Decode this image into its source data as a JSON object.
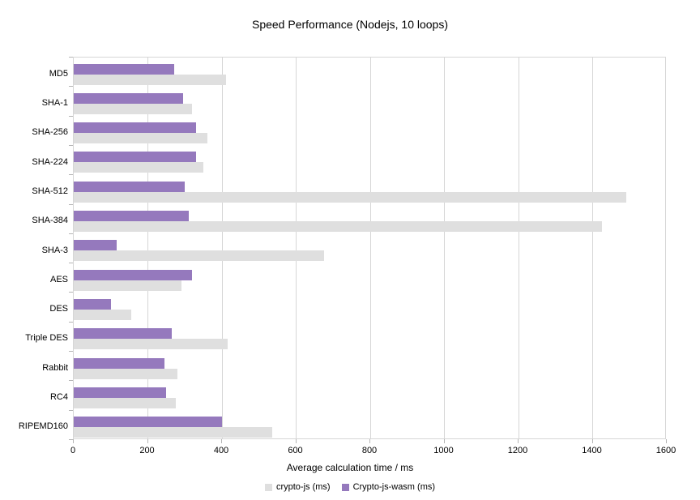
{
  "title": "Speed Performance (Nodejs, 10 loops)",
  "chart_data": {
    "type": "bar",
    "orientation": "horizontal",
    "title": "Speed Performance (Nodejs, 10 loops)",
    "xlabel": "Average calculation time / ms",
    "ylabel": "",
    "xlim": [
      0,
      1600
    ],
    "xticks": [
      0,
      200,
      400,
      600,
      800,
      1000,
      1200,
      1400,
      1600
    ],
    "grid": "vertical",
    "legend_position": "bottom",
    "categories": [
      "MD5",
      "SHA-1",
      "SHA-256",
      "SHA-224",
      "SHA-512",
      "SHA-384",
      "SHA-3",
      "AES",
      "DES",
      "Triple DES",
      "Rabbit",
      "RC4",
      "RIPEMD160"
    ],
    "series": [
      {
        "name": "crypto-js (ms)",
        "color": "#dfdfdf",
        "values": [
          410,
          320,
          360,
          350,
          1490,
          1425,
          675,
          290,
          155,
          415,
          280,
          275,
          535
        ]
      },
      {
        "name": "Crypto-js-wasm (ms)",
        "color": "#9579bd",
        "values": [
          270,
          295,
          330,
          330,
          300,
          310,
          115,
          320,
          100,
          265,
          245,
          250,
          400
        ]
      }
    ]
  },
  "colors": {
    "background": "#ffffff",
    "grid": "#d6d6d6",
    "tick": "#b5b5b5",
    "text": "#000000"
  }
}
